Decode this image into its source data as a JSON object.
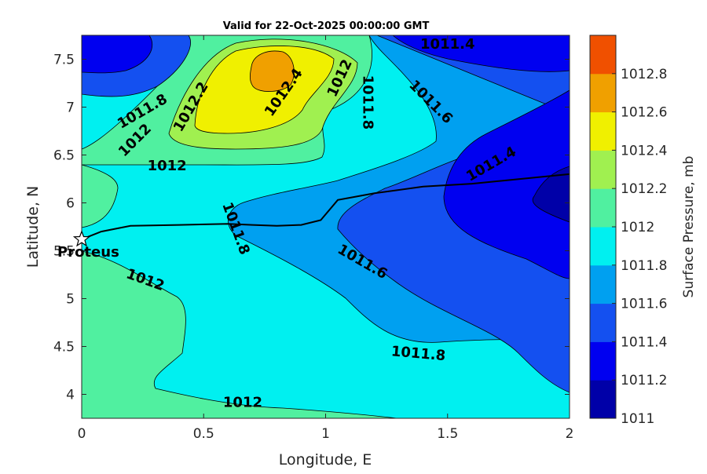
{
  "chart_data": {
    "type": "contour",
    "title": "Valid for 22-Oct-2025 00:00:00 GMT",
    "xlabel": "Longitude, E",
    "ylabel": "Latitude, N",
    "xlim": [
      0,
      2
    ],
    "ylim": [
      3.75,
      7.75
    ],
    "x_ticks": [
      "0",
      "0.5",
      "1",
      "1.5",
      "2"
    ],
    "y_ticks": [
      "4",
      "4.5",
      "5",
      "5.5",
      "6",
      "6.5",
      "7",
      "7.5"
    ],
    "grid": false,
    "colorbar": {
      "label": "Surface Pressure, mb",
      "levels": [
        1011,
        1011.2,
        1011.4,
        1011.6,
        1011.8,
        1012,
        1012.2,
        1012.4,
        1012.6,
        1012.8
      ],
      "tick_labels": [
        "1011",
        "1011.2",
        "1011.4",
        "1011.6",
        "1011.8",
        "1012",
        "1012.2",
        "1012.4",
        "1012.6",
        "1012.8"
      ],
      "colors": [
        "#0000a8",
        "#0000f0",
        "#1450f0",
        "#00a0f0",
        "#00f0f0",
        "#50f0a0",
        "#a0f050",
        "#f0f000",
        "#f0a000",
        "#f05000"
      ]
    },
    "contour_labels": [
      {
        "text": "1011.4",
        "x": 1.5,
        "y": 7.65
      },
      {
        "text": "1011.8",
        "x": 0.25,
        "y": 6.95
      },
      {
        "text": "1012.2",
        "x": 0.45,
        "y": 7.0
      },
      {
        "text": "1012.4",
        "x": 0.83,
        "y": 7.15
      },
      {
        "text": "1012",
        "x": 1.06,
        "y": 7.3
      },
      {
        "text": "1011.8",
        "x": 1.17,
        "y": 7.05
      },
      {
        "text": "1011.6",
        "x": 1.43,
        "y": 7.05
      },
      {
        "text": "1012",
        "x": 0.22,
        "y": 6.65
      },
      {
        "text": "1012",
        "x": 0.35,
        "y": 6.38
      },
      {
        "text": "1011.4",
        "x": 1.68,
        "y": 6.4
      },
      {
        "text": "1011.8",
        "x": 0.63,
        "y": 5.73
      },
      {
        "text": "1011.6",
        "x": 1.15,
        "y": 5.38
      },
      {
        "text": "1012",
        "x": 0.26,
        "y": 5.19
      },
      {
        "text": "1011.8",
        "x": 1.38,
        "y": 4.42
      },
      {
        "text": "1012",
        "x": 0.66,
        "y": 3.91
      }
    ],
    "track": [
      [
        0.0,
        5.62
      ],
      [
        0.08,
        5.7
      ],
      [
        0.2,
        5.76
      ],
      [
        0.4,
        5.77
      ],
      [
        0.6,
        5.78
      ],
      [
        0.7,
        5.77
      ],
      [
        0.8,
        5.76
      ],
      [
        0.9,
        5.77
      ],
      [
        0.98,
        5.82
      ],
      [
        1.05,
        6.03
      ],
      [
        1.2,
        6.1
      ],
      [
        1.4,
        6.17
      ],
      [
        1.6,
        6.2
      ],
      [
        1.8,
        6.25
      ],
      [
        2.0,
        6.3
      ]
    ],
    "marker": {
      "name": "Proteus",
      "x": 0.0,
      "y": 5.62
    }
  }
}
